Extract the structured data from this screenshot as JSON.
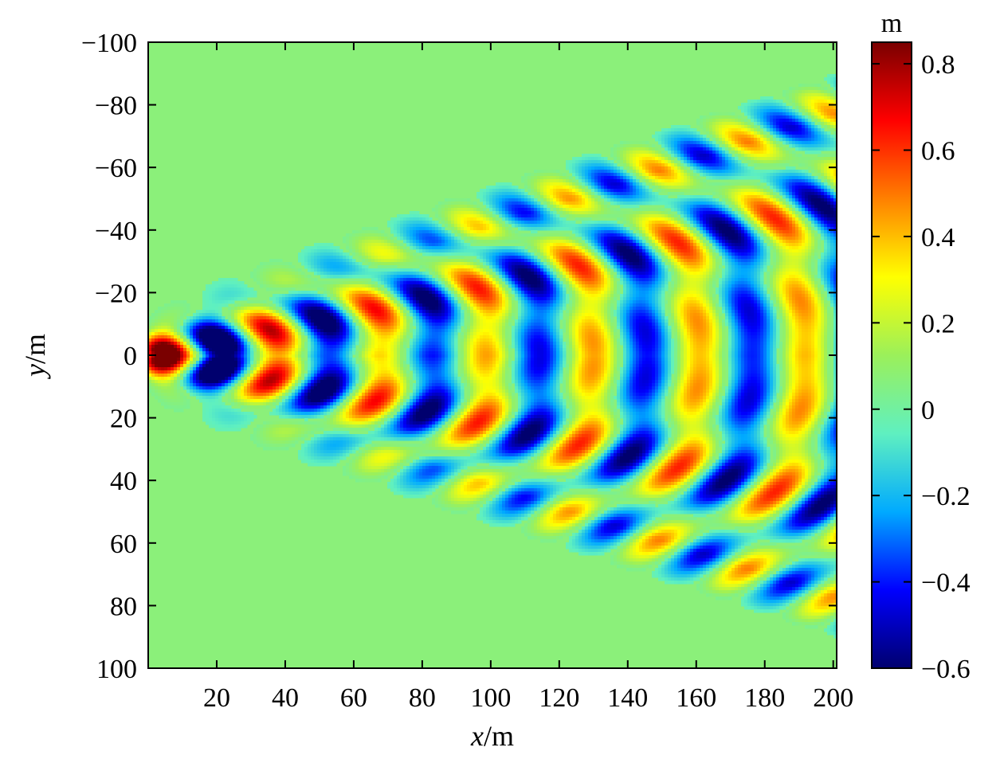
{
  "chart_data": {
    "type": "heatmap",
    "title": "",
    "xlabel": {
      "var": "x",
      "unit": "/m"
    },
    "ylabel": {
      "var": "y",
      "unit": "/m"
    },
    "xlim": [
      0,
      201
    ],
    "ylim": [
      -100,
      100
    ],
    "y_axis_inverted": true,
    "x_ticks": [
      20,
      40,
      60,
      80,
      100,
      120,
      140,
      160,
      180,
      200
    ],
    "y_ticks": [
      -100,
      -80,
      -60,
      -40,
      -20,
      0,
      20,
      40,
      60,
      80,
      100
    ],
    "x_tick_labels": [
      "20",
      "40",
      "60",
      "80",
      "100",
      "120",
      "140",
      "160",
      "180",
      "200"
    ],
    "y_tick_labels": [
      "−100",
      "−80",
      "−60",
      "−40",
      "−20",
      "0",
      "20",
      "40",
      "60",
      "80",
      "100"
    ],
    "grid": false,
    "colorbar": {
      "unit": "m",
      "range": [
        -0.6,
        0.85
      ],
      "ticks": [
        0.8,
        0.6,
        0.4,
        0.2,
        0,
        -0.2,
        -0.4,
        -0.6
      ],
      "tick_labels": [
        "0.8",
        "0.6",
        "0.4",
        "0.2",
        "0",
        "−0.2",
        "−0.4",
        "−0.6"
      ],
      "colormap": "jet",
      "colors": [
        "#00006e",
        "#0000ff",
        "#00aaff",
        "#5ff0c0",
        "#9bf05a",
        "#ffff00",
        "#ff8000",
        "#ff0000",
        "#7a0000"
      ],
      "background_color": "#8bf07a"
    },
    "pattern": {
      "description_values": "ship Kelvin wake elevation field",
      "wavelength_m": 31,
      "first_trough_x_m": 21,
      "first_crest_x_m": 6,
      "wedge_half_angle_deg": 19.5,
      "max_elevation_m": 0.8,
      "min_elevation_m": -0.6
    }
  }
}
